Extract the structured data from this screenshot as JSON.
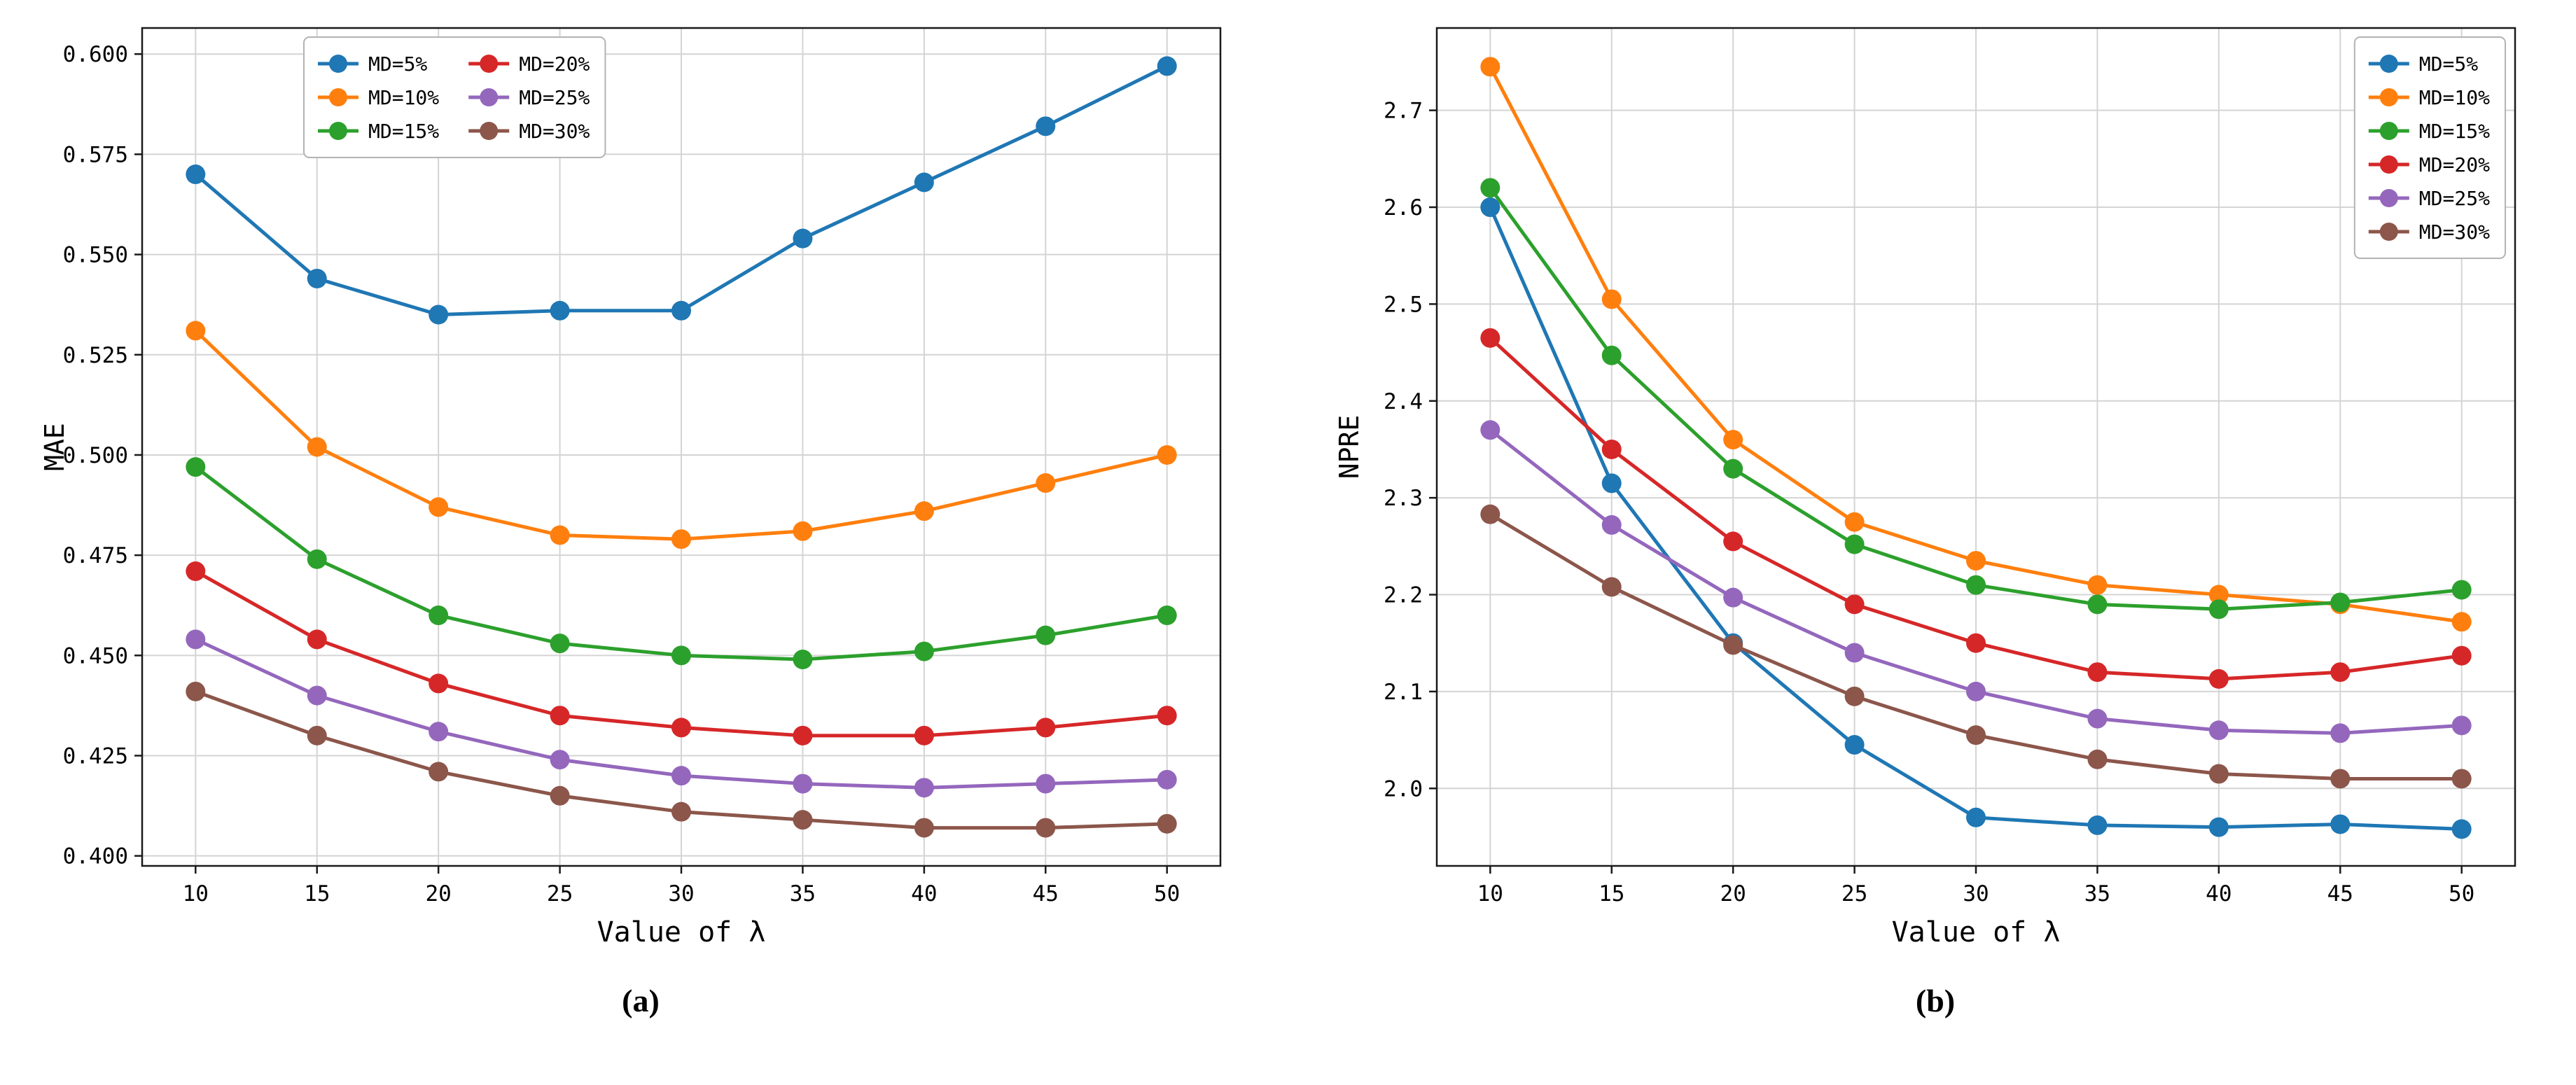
{
  "figure": {
    "captions": {
      "a": "(a)",
      "b": "(b)"
    }
  },
  "chart_data": [
    {
      "id": "mae",
      "type": "line",
      "title": "",
      "xlabel": "Value of λ",
      "ylabel": "MAE",
      "x": [
        10,
        15,
        20,
        25,
        30,
        35,
        40,
        45,
        50
      ],
      "x_tick_labels": [
        "10",
        "15",
        "20",
        "25",
        "30",
        "35",
        "40",
        "45",
        "50"
      ],
      "xlim": [
        7.8,
        52.2
      ],
      "ylim": [
        0.3975,
        0.6065
      ],
      "y_ticks": [
        0.4,
        0.425,
        0.45,
        0.475,
        0.5,
        0.525,
        0.55,
        0.575,
        0.6
      ],
      "y_tick_labels": [
        "0.400",
        "0.425",
        "0.450",
        "0.475",
        "0.500",
        "0.525",
        "0.550",
        "0.575",
        "0.600"
      ],
      "grid": true,
      "legend": {
        "position": "top-center",
        "columns": 2
      },
      "series": [
        {
          "name": "MD=5%",
          "color": "#1f77b4",
          "values": [
            0.57,
            0.544,
            0.535,
            0.536,
            0.536,
            0.554,
            0.568,
            0.582,
            0.597
          ]
        },
        {
          "name": "MD=10%",
          "color": "#ff7f0e",
          "values": [
            0.531,
            0.502,
            0.487,
            0.48,
            0.479,
            0.481,
            0.486,
            0.493,
            0.5
          ]
        },
        {
          "name": "MD=15%",
          "color": "#2ca02c",
          "values": [
            0.497,
            0.474,
            0.46,
            0.453,
            0.45,
            0.449,
            0.451,
            0.455,
            0.46
          ]
        },
        {
          "name": "MD=20%",
          "color": "#d62728",
          "values": [
            0.471,
            0.454,
            0.443,
            0.435,
            0.432,
            0.43,
            0.43,
            0.432,
            0.435
          ]
        },
        {
          "name": "MD=25%",
          "color": "#9467bd",
          "values": [
            0.454,
            0.44,
            0.431,
            0.424,
            0.42,
            0.418,
            0.417,
            0.418,
            0.419
          ]
        },
        {
          "name": "MD=30%",
          "color": "#8c564b",
          "values": [
            0.441,
            0.43,
            0.421,
            0.415,
            0.411,
            0.409,
            0.407,
            0.407,
            0.408
          ]
        }
      ]
    },
    {
      "id": "npre",
      "type": "line",
      "title": "",
      "xlabel": "Value of λ",
      "ylabel": "NPRE",
      "x": [
        10,
        15,
        20,
        25,
        30,
        35,
        40,
        45,
        50
      ],
      "x_tick_labels": [
        "10",
        "15",
        "20",
        "25",
        "30",
        "35",
        "40",
        "45",
        "50"
      ],
      "xlim": [
        7.8,
        52.2
      ],
      "ylim": [
        1.92,
        2.785
      ],
      "y_ticks": [
        2.0,
        2.1,
        2.2,
        2.3,
        2.4,
        2.5,
        2.6,
        2.7
      ],
      "y_tick_labels": [
        "2.0",
        "2.1",
        "2.2",
        "2.3",
        "2.4",
        "2.5",
        "2.6",
        "2.7"
      ],
      "grid": true,
      "legend": {
        "position": "top-right",
        "columns": 1
      },
      "series": [
        {
          "name": "MD=5%",
          "color": "#1f77b4",
          "values": [
            2.6,
            2.315,
            2.15,
            2.045,
            1.97,
            1.962,
            1.96,
            1.963,
            1.958
          ]
        },
        {
          "name": "MD=10%",
          "color": "#ff7f0e",
          "values": [
            2.745,
            2.505,
            2.36,
            2.275,
            2.235,
            2.21,
            2.2,
            2.19,
            2.172
          ]
        },
        {
          "name": "MD=15%",
          "color": "#2ca02c",
          "values": [
            2.62,
            2.447,
            2.33,
            2.252,
            2.21,
            2.19,
            2.185,
            2.192,
            2.205
          ]
        },
        {
          "name": "MD=20%",
          "color": "#d62728",
          "values": [
            2.465,
            2.35,
            2.255,
            2.19,
            2.15,
            2.12,
            2.113,
            2.12,
            2.137
          ]
        },
        {
          "name": "MD=25%",
          "color": "#9467bd",
          "values": [
            2.37,
            2.272,
            2.197,
            2.14,
            2.1,
            2.072,
            2.06,
            2.057,
            2.065
          ]
        },
        {
          "name": "MD=30%",
          "color": "#8c564b",
          "values": [
            2.283,
            2.208,
            2.148,
            2.095,
            2.055,
            2.03,
            2.015,
            2.01,
            2.01
          ]
        }
      ]
    }
  ]
}
